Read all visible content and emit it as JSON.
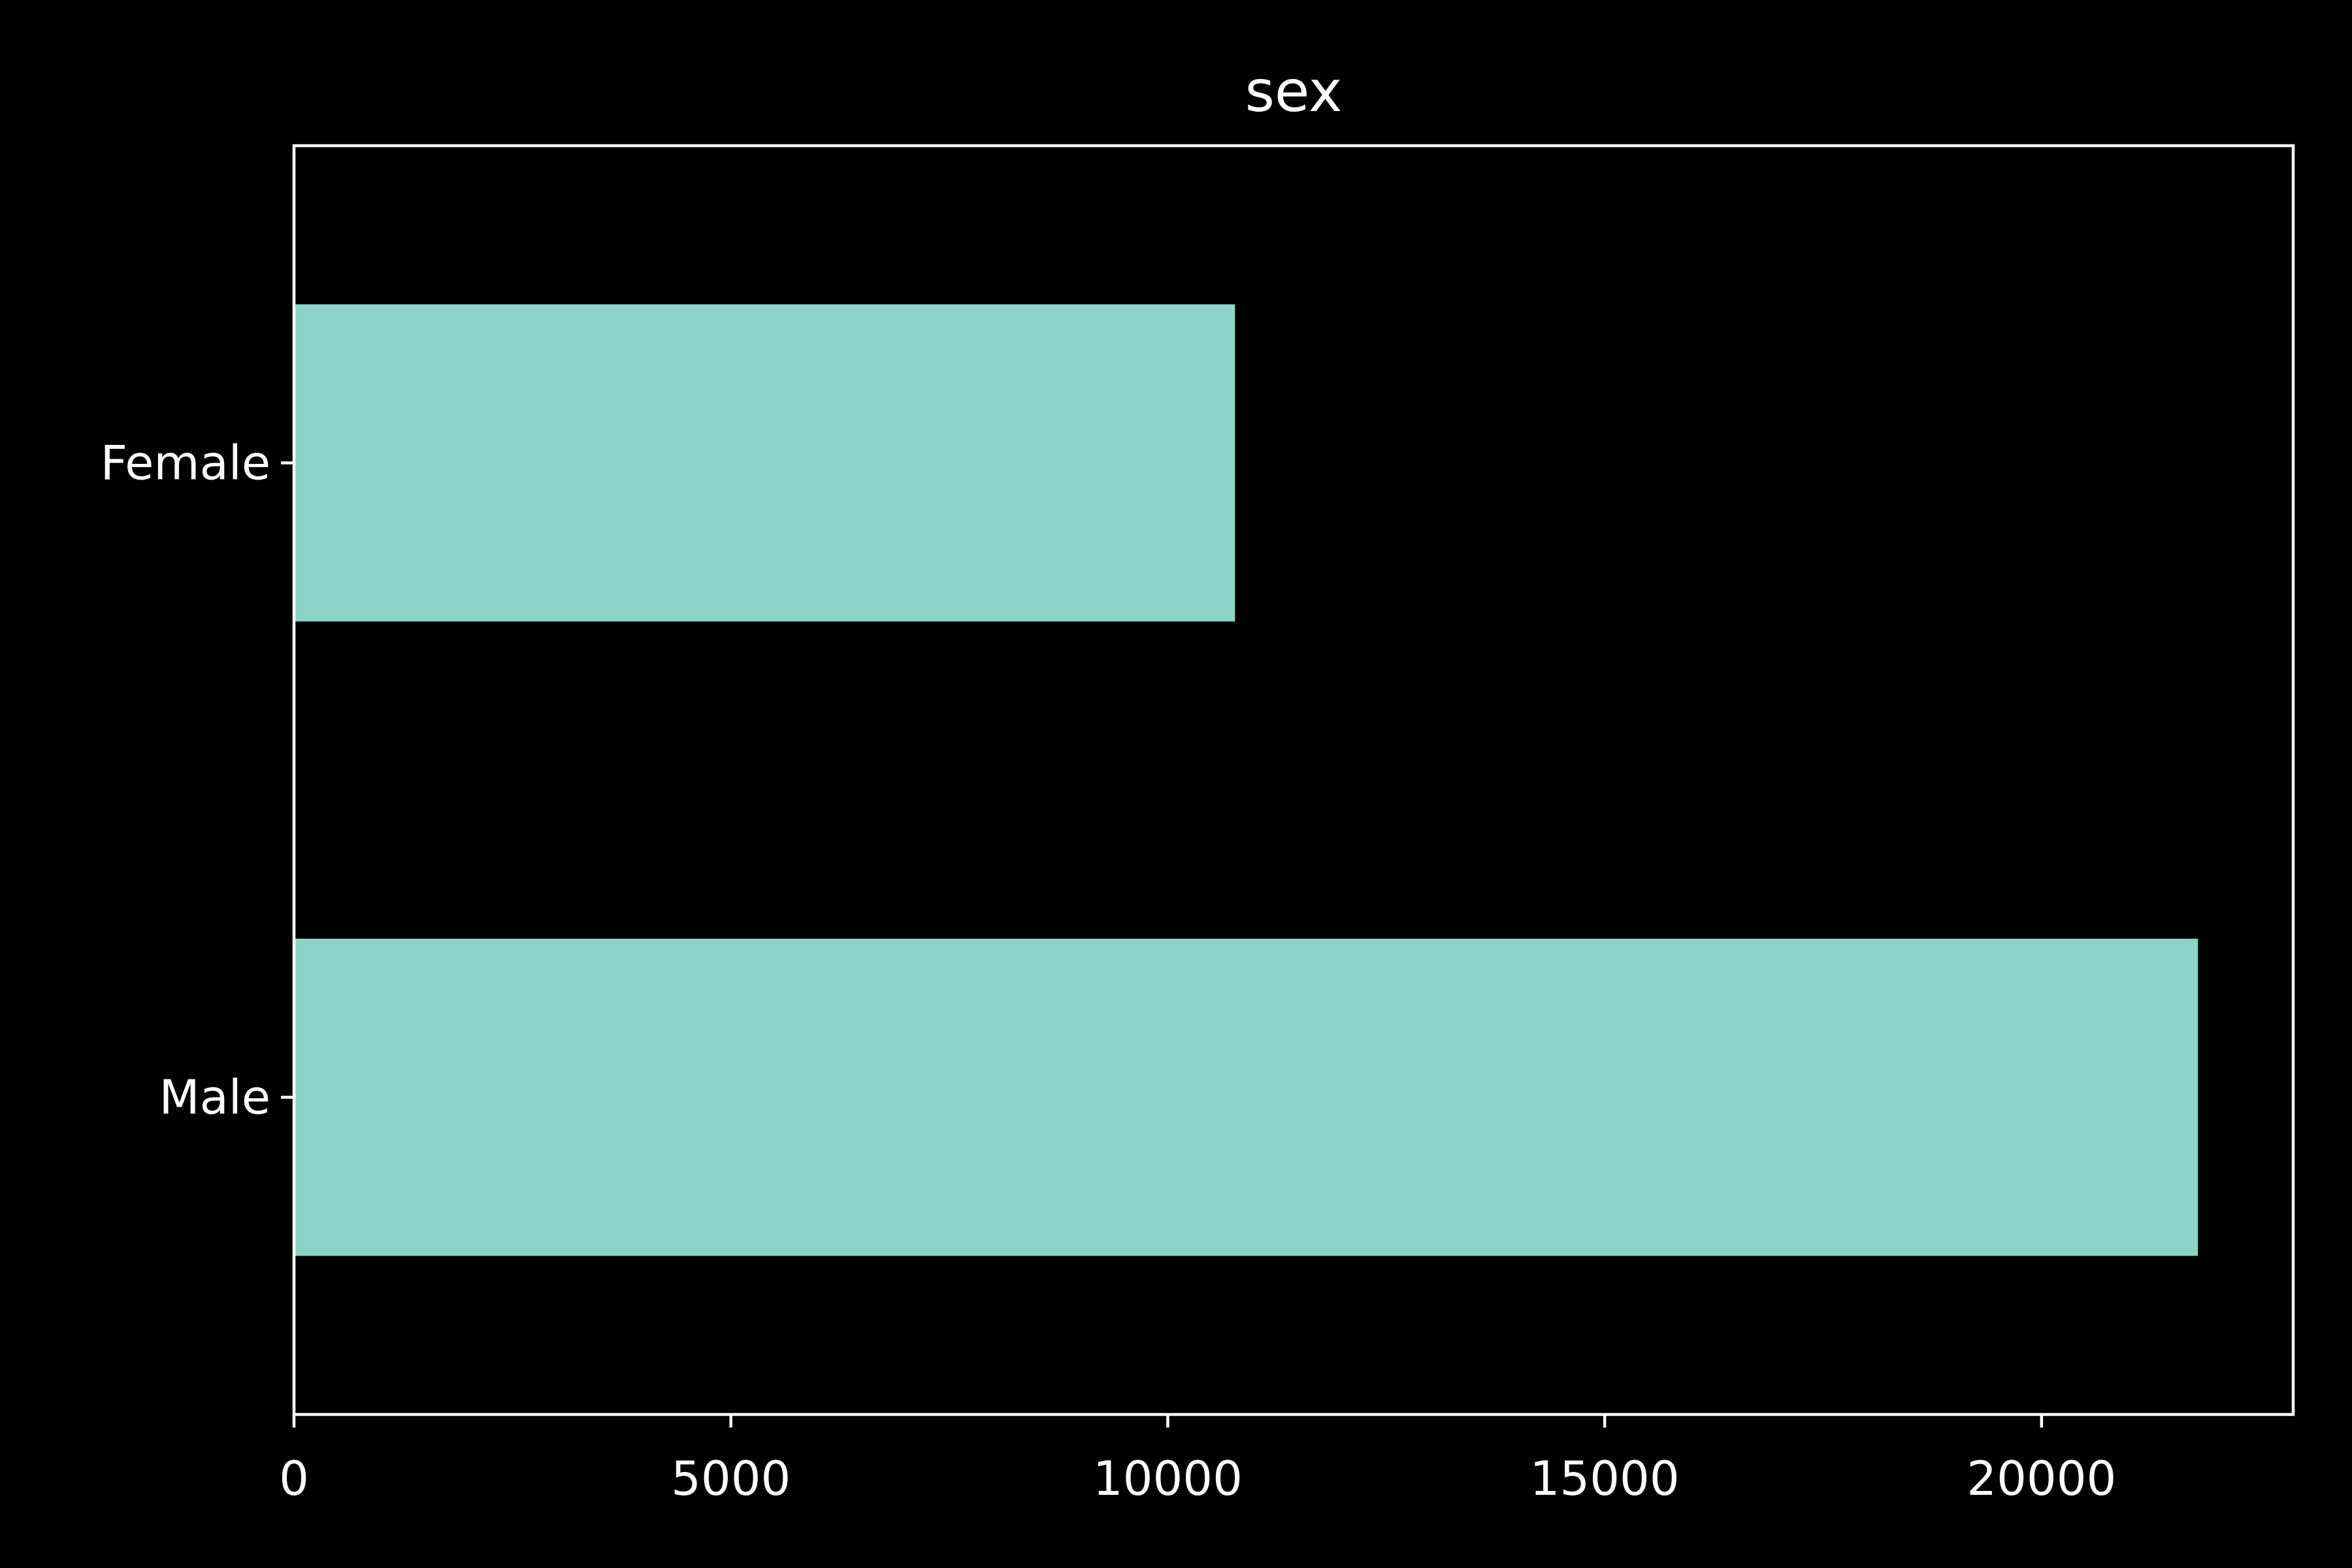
{
  "chart_data": {
    "type": "bar",
    "orientation": "horizontal",
    "title": "sex",
    "xlabel": "",
    "ylabel": "",
    "categories": [
      "Female",
      "Male"
    ],
    "values": [
      10770,
      21790
    ],
    "xlim": [
      0,
      22880
    ],
    "xticks": [
      0,
      5000,
      10000,
      15000,
      20000
    ],
    "xtick_labels": [
      "0",
      "5000",
      "10000",
      "15000",
      "20000"
    ],
    "grid": false,
    "legend": "none",
    "colors": {
      "bar": "#8dd3c7",
      "background": "#000000",
      "axes": "#ffffff",
      "text": "#ffffff"
    }
  }
}
